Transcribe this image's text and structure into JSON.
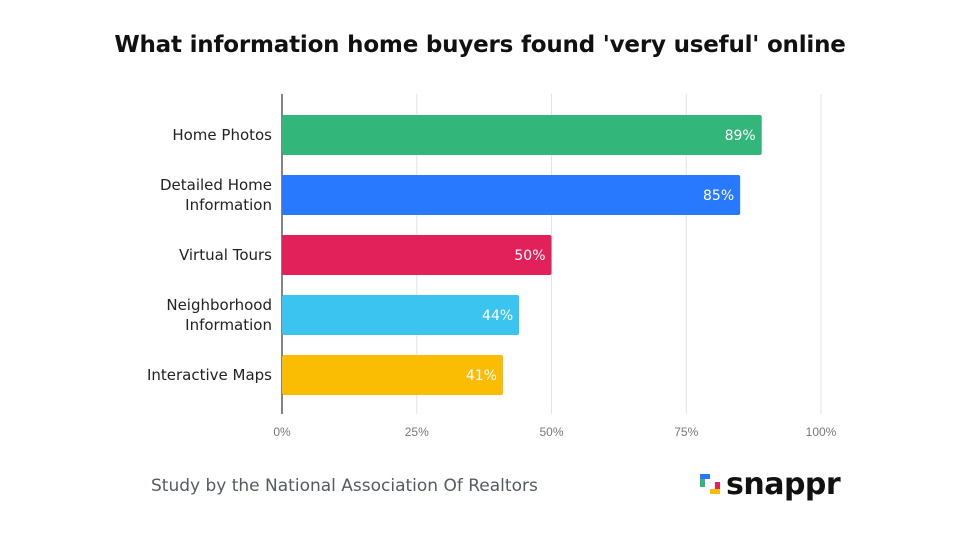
{
  "chart_data": {
    "type": "bar",
    "orientation": "horizontal",
    "title": "What information home buyers found 'very useful' online",
    "categories": [
      [
        "Home Photos"
      ],
      [
        "Detailed Home",
        "Information"
      ],
      [
        "Virtual Tours"
      ],
      [
        "Neighborhood",
        "Information"
      ],
      [
        "Interactive Maps"
      ]
    ],
    "values": [
      89,
      85,
      50,
      44,
      41
    ],
    "value_labels": [
      "89%",
      "85%",
      "50%",
      "44%",
      "41%"
    ],
    "colors": [
      "#33b679",
      "#2979ff",
      "#e2215b",
      "#3cc4f0",
      "#fbbc04"
    ],
    "xlim": [
      0,
      100
    ],
    "xticks": [
      0,
      25,
      50,
      75,
      100
    ],
    "xtick_labels": [
      "0%",
      "25%",
      "50%",
      "75%",
      "100%"
    ],
    "grid": true
  },
  "footer": {
    "source": "Study by the National Association Of Realtors"
  },
  "logo": {
    "text": "snappr",
    "mark_colors": [
      "#2979ff",
      "#33b679",
      "#fbbc04",
      "#e2215b"
    ]
  }
}
